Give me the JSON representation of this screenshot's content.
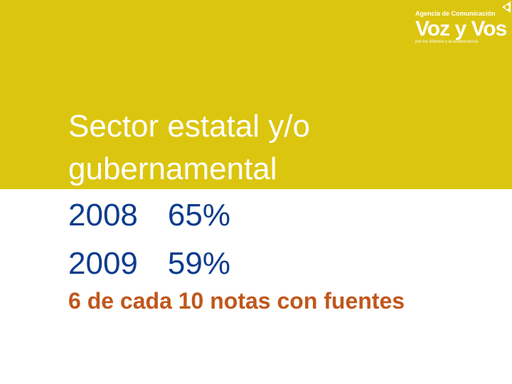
{
  "logo": {
    "agency": "Agencia de Comunicación",
    "wordmark": "Voz y Vos",
    "tagline": "por los infancia y la adolescencia"
  },
  "slide": {
    "title": "Sector estatal y/o gubernamental",
    "rows": [
      {
        "year": "2008",
        "percent": "65%"
      },
      {
        "year": "2009",
        "percent": "59%"
      }
    ],
    "summary": "6 de cada 10 notas con fuentes"
  },
  "colors": {
    "band": "#dcc50f",
    "title": "#ffffff",
    "numbers": "#0d3c8c",
    "summary": "#c0571c"
  }
}
